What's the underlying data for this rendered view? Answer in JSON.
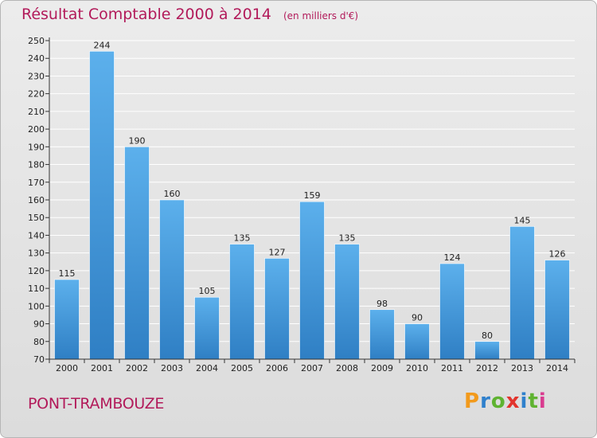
{
  "title": "Résultat Comptable 2000 à 2014",
  "subtitle": "(en milliers d'€)",
  "commune": "PONT-TRAMBOUZE",
  "logo": "Proxiti",
  "colors": {
    "bar": "#3a8fd6",
    "bar_light": "#5cb0ec",
    "title": "#b21a5a",
    "grid": "#ffffff"
  },
  "chart_data": {
    "type": "bar",
    "title": "Résultat Comptable 2000 à 2014",
    "subtitle": "(en milliers d'€)",
    "xlabel": "",
    "ylabel": "",
    "ylim": [
      70,
      250
    ],
    "ytick_step": 10,
    "grid": true,
    "categories": [
      "2000",
      "2001",
      "2002",
      "2003",
      "2004",
      "2005",
      "2006",
      "2007",
      "2008",
      "2009",
      "2010",
      "2011",
      "2012",
      "2013",
      "2014"
    ],
    "values": [
      115,
      244,
      190,
      160,
      105,
      135,
      127,
      159,
      135,
      98,
      90,
      124,
      80,
      145,
      126
    ]
  }
}
